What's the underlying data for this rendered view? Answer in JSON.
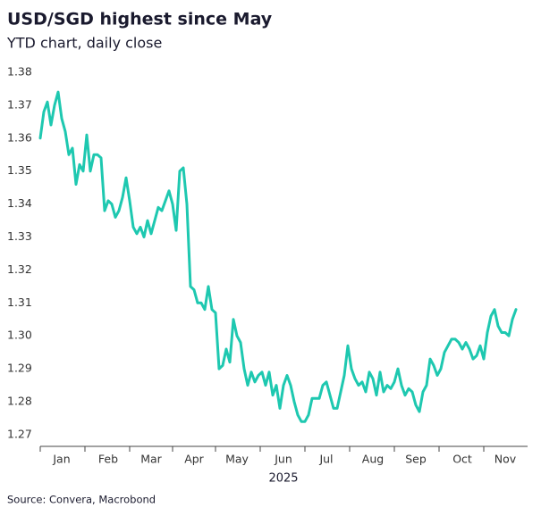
{
  "chart_data": {
    "type": "line",
    "title": "USD/SGD highest since May",
    "subtitle": "YTD chart, daily close",
    "x_label": "2025",
    "source": "Source: Convera, Macrobond",
    "color": "#1ec8b0",
    "categories": [
      null,
      null,
      null,
      null,
      null,
      null,
      "Jan",
      null,
      null,
      null,
      null,
      null,
      null,
      null,
      null,
      null,
      null,
      null,
      null,
      "Feb",
      null,
      null,
      null,
      null,
      null,
      null,
      null,
      null,
      null,
      null,
      null,
      "Mar",
      null,
      null,
      null,
      null,
      null,
      null,
      null,
      null,
      null,
      null,
      null,
      "Apr",
      null,
      null,
      null,
      null,
      null,
      null,
      null,
      null,
      null,
      null,
      null,
      "May",
      null,
      null,
      null,
      null,
      null,
      null,
      null,
      null,
      null,
      null,
      null,
      null,
      "Jun",
      null,
      null,
      null,
      null,
      null,
      null,
      null,
      null,
      null,
      null,
      null,
      "Jul",
      null,
      null,
      null,
      null,
      null,
      null,
      null,
      null,
      null,
      null,
      null,
      null,
      "Aug",
      null,
      null,
      null,
      null,
      null,
      null,
      null,
      null,
      null,
      null,
      null,
      "Sep",
      null,
      null,
      null,
      null,
      null,
      null,
      null,
      null,
      null,
      null,
      null,
      null,
      "Oct",
      null,
      null,
      null,
      null,
      null,
      null,
      null,
      null,
      null,
      null,
      null,
      "Nov",
      null,
      null,
      null
    ],
    "values": [
      1.36,
      1.368,
      1.371,
      1.364,
      1.37,
      1.374,
      1.366,
      1.362,
      1.355,
      1.357,
      1.346,
      1.352,
      1.35,
      1.361,
      1.35,
      1.355,
      1.355,
      1.354,
      1.338,
      1.341,
      1.34,
      1.336,
      1.338,
      1.342,
      1.348,
      1.341,
      1.333,
      1.331,
      1.333,
      1.33,
      1.335,
      1.331,
      1.335,
      1.339,
      1.338,
      1.341,
      1.344,
      1.34,
      1.332,
      1.35,
      1.351,
      1.34,
      1.315,
      1.314,
      1.31,
      1.31,
      1.308,
      1.315,
      1.308,
      1.307,
      1.29,
      1.291,
      1.296,
      1.292,
      1.305,
      1.3,
      1.298,
      1.29,
      1.285,
      1.289,
      1.286,
      1.288,
      1.289,
      1.285,
      1.289,
      1.282,
      1.285,
      1.278,
      1.285,
      1.288,
      1.285,
      1.28,
      1.276,
      1.274,
      1.274,
      1.276,
      1.281,
      1.281,
      1.281,
      1.285,
      1.286,
      1.282,
      1.278,
      1.278,
      1.283,
      1.288,
      1.297,
      1.29,
      1.287,
      1.285,
      1.286,
      1.283,
      1.289,
      1.287,
      1.282,
      1.289,
      1.283,
      1.285,
      1.284,
      1.286,
      1.29,
      1.285,
      1.282,
      1.284,
      1.283,
      1.279,
      1.277,
      1.283,
      1.285,
      1.293,
      1.291,
      1.288,
      1.29,
      1.295,
      1.297,
      1.299,
      1.299,
      1.298,
      1.296,
      1.298,
      1.296,
      1.293,
      1.294,
      1.297,
      1.293,
      1.301,
      1.306,
      1.308,
      1.303,
      1.301,
      1.301,
      1.3,
      1.305,
      1.308
    ],
    "ylim": [
      1.266,
      1.381
    ],
    "yticks": [
      1.27,
      1.28,
      1.29,
      {
        "value": 1.3,
        "label": "1.30"
      },
      1.31,
      1.32,
      1.33,
      1.34,
      1.35,
      1.36,
      1.37,
      1.38
    ],
    "grid": false
  }
}
